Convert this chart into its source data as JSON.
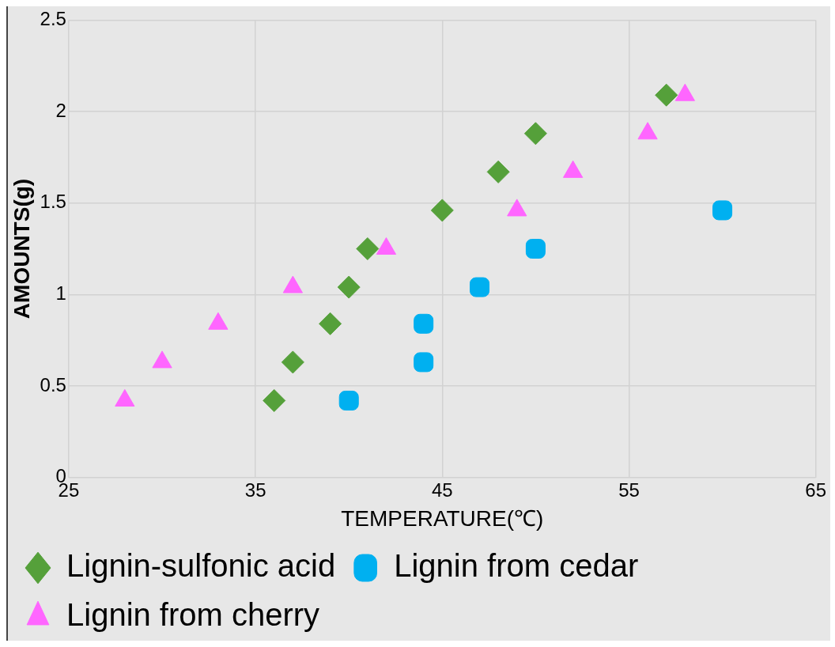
{
  "chart_data": {
    "type": "scatter",
    "xlabel": "TEMPERATURE(℃)",
    "ylabel": "AMOUNTS(g)",
    "xlim": [
      25,
      65
    ],
    "xticks": [
      25,
      35,
      45,
      55,
      65
    ],
    "ylim": [
      0,
      2.5
    ],
    "yticks": [
      0,
      0.5,
      1,
      1.5,
      2,
      2.5
    ],
    "grid": true,
    "legend": "bottom",
    "series": [
      {
        "name": "Lignin-sulfonic acid",
        "color": "#55a03a",
        "marker": "diamond",
        "x": [
          36,
          37,
          39,
          40,
          41,
          45,
          48,
          50,
          57
        ],
        "values": [
          0.42,
          0.63,
          0.84,
          1.04,
          1.25,
          1.46,
          1.67,
          1.88,
          2.09
        ]
      },
      {
        "name": "Lignin from cedar",
        "color": "#00b0f0",
        "marker": "square",
        "x": [
          40,
          44,
          44,
          47,
          50,
          60
        ],
        "values": [
          0.42,
          0.63,
          0.84,
          1.04,
          1.25,
          1.46
        ]
      },
      {
        "name": "Lignin from cherry",
        "color": "#ff66ff",
        "marker": "triangle",
        "x": [
          28,
          30,
          33,
          37,
          42,
          49,
          52,
          56,
          58
        ],
        "values": [
          0.42,
          0.63,
          0.84,
          1.04,
          1.25,
          1.46,
          1.67,
          1.88,
          2.09
        ]
      }
    ]
  }
}
